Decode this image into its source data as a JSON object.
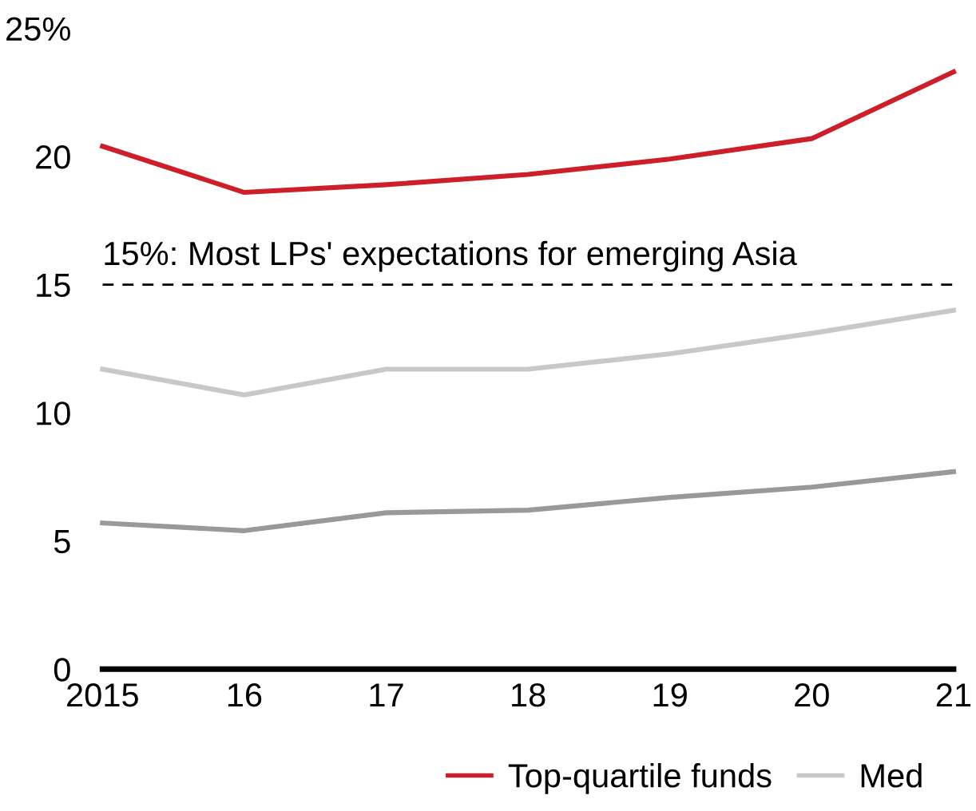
{
  "chart_data": {
    "type": "line",
    "x": [
      2015,
      2016,
      2017,
      2018,
      2019,
      2020,
      2021
    ],
    "series": [
      {
        "name": "Top-quartile funds",
        "color": "#cc1f2a",
        "values": [
          20.4,
          18.6,
          18.9,
          19.3,
          19.9,
          20.7,
          23.3
        ]
      },
      {
        "name": "Med",
        "color": "#c8c8c8",
        "values": [
          11.7,
          10.7,
          11.7,
          11.7,
          12.3,
          13.1,
          14.0
        ]
      },
      {
        "color": "#999999",
        "values": [
          5.7,
          5.4,
          6.1,
          6.2,
          6.7,
          7.1,
          7.7
        ]
      }
    ],
    "xlim": [
      2015,
      2021
    ],
    "xticks": [
      2015,
      {
        "value": 2016,
        "label": "16"
      },
      {
        "value": 2017,
        "label": "17"
      },
      {
        "value": 2018,
        "label": "18"
      },
      {
        "value": 2019,
        "label": "19"
      },
      {
        "value": 2020,
        "label": "20"
      },
      {
        "value": 2021,
        "label": "21"
      }
    ],
    "ylim": [
      0,
      25
    ],
    "yticks": [
      0,
      5,
      10,
      15,
      20,
      {
        "value": 25,
        "label": "25%"
      }
    ],
    "ref_lines": [
      {
        "axis": "y",
        "value": 15,
        "label": "15%: Most LPs' expectations for emerging Asia",
        "color": "#000000",
        "line_style": "dashed"
      }
    ],
    "grid": false,
    "legend": "bottom right",
    "marker": "none",
    "line_style": "solid"
  }
}
